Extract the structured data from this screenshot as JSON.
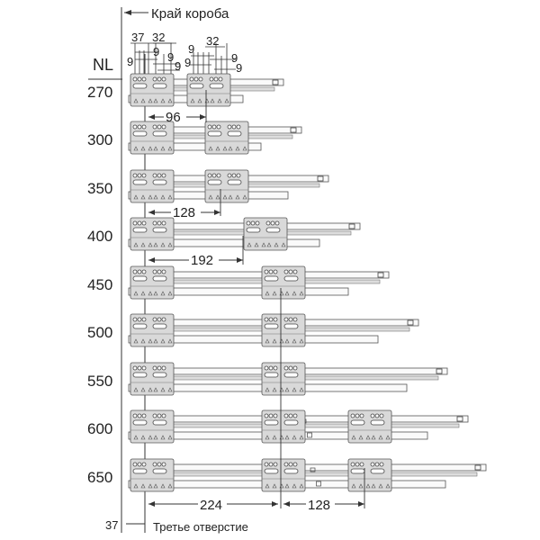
{
  "header": {
    "box_edge_label": "Край короба",
    "nl_label": "NL"
  },
  "rows": [
    {
      "nl": "270"
    },
    {
      "nl": "300"
    },
    {
      "nl": "350"
    },
    {
      "nl": "400"
    },
    {
      "nl": "450"
    },
    {
      "nl": "500"
    },
    {
      "nl": "550"
    },
    {
      "nl": "600"
    },
    {
      "nl": "650"
    }
  ],
  "top_dimensions": {
    "d37": "37",
    "d32a": "32",
    "d32b": "32",
    "nine": "9"
  },
  "dimensions": {
    "d96": "96",
    "d128a": "128",
    "d192": "192",
    "d224": "224",
    "d128b": "128",
    "d37": "37"
  },
  "footer": {
    "third_hole_label": "Третье отверстие"
  }
}
